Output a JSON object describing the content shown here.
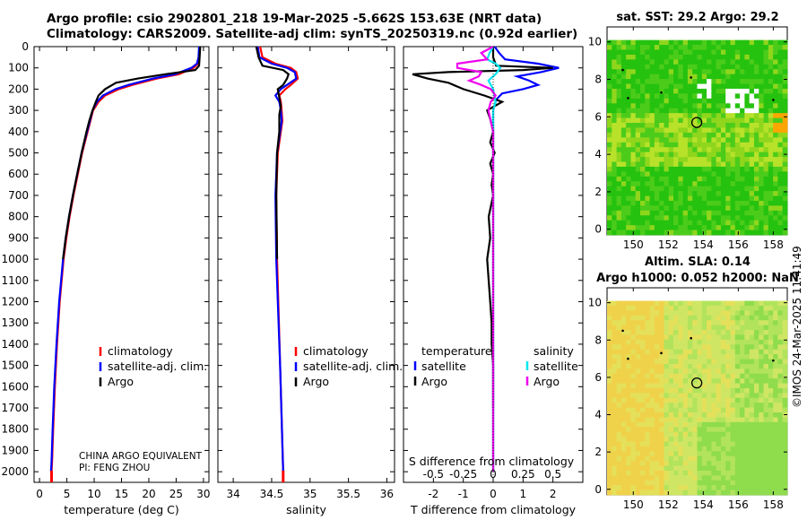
{
  "header": {
    "line1": "Argo profile: csio 2902801_218 19-Mar-2025 -5.662S 153.63E (NRT data)",
    "line2": "Climatology: CARS2009. Satellite-adj clim: synTS_20250319.nc (0.92d earlier)"
  },
  "timestamp": "©IMOS 24-Mar-2025 11:41:49",
  "colors": {
    "climatology": "#ff0000",
    "satellite_adj": "#0000ff",
    "argo": "#000000",
    "sat_salinity": "#00e5ee",
    "argo_salinity": "#ee00ee"
  },
  "chart_data": [
    {
      "id": "temperature",
      "type": "line",
      "xlabel": "temperature (deg C)",
      "ylabel": "",
      "xlim": [
        -1,
        31
      ],
      "ylim": [
        2050,
        0
      ],
      "xticks": [
        "0",
        "5",
        "10",
        "15",
        "20",
        "25",
        "30"
      ],
      "yticks": [
        "0",
        "100",
        "200",
        "300",
        "400",
        "500",
        "600",
        "700",
        "800",
        "900",
        "1000",
        "1100",
        "1200",
        "1300",
        "1400",
        "1500",
        "1600",
        "1700",
        "1800",
        "1900",
        "2000"
      ],
      "legend": [
        "climatology",
        "satellite-adj. clim.",
        "Argo"
      ],
      "legend_position": "lower-right",
      "annotation": [
        "CHINA ARGO EQUIVALENT",
        "PI: FENG ZHOU"
      ],
      "series": [
        {
          "name": "climatology",
          "color": "#ff0000",
          "depth": [
            0,
            50,
            80,
            100,
            130,
            150,
            180,
            200,
            230,
            260,
            300,
            350,
            400,
            500,
            600,
            700,
            800,
            900,
            1000,
            1200,
            1400,
            1600,
            1800,
            1950,
            2000
          ],
          "values": [
            29.3,
            29.2,
            29.0,
            28.2,
            25.5,
            21.5,
            17.0,
            14.5,
            12.0,
            10.8,
            9.8,
            9.3,
            8.8,
            7.8,
            7.0,
            6.2,
            5.5,
            4.9,
            4.4,
            3.7,
            3.2,
            2.8,
            2.5,
            2.3,
            2.2
          ]
        },
        {
          "name": "satellite-adj. clim.",
          "color": "#0000ff",
          "depth": [
            0,
            50,
            80,
            100,
            130,
            150,
            180,
            200,
            230,
            260,
            300,
            350,
            400,
            500,
            600,
            700,
            800,
            900,
            1000,
            1200,
            1400,
            1600,
            1800,
            1950,
            2000
          ],
          "values": [
            29.2,
            29.1,
            28.8,
            27.8,
            24.8,
            20.8,
            16.3,
            13.9,
            11.6,
            10.5,
            9.7,
            9.2,
            8.7,
            7.7,
            6.9,
            6.1,
            5.4,
            4.8,
            4.3,
            3.6,
            3.1,
            2.7,
            2.4,
            2.2,
            2.1
          ]
        },
        {
          "name": "Argo",
          "color": "#000000",
          "depth": [
            0,
            50,
            90,
            110,
            130,
            150,
            170,
            200,
            230,
            260,
            300,
            350,
            400,
            500,
            600,
            700,
            800,
            900,
            1000
          ],
          "values": [
            29.4,
            29.3,
            29.2,
            28.5,
            23.0,
            18.0,
            14.0,
            12.0,
            10.8,
            10.3,
            9.7,
            9.1,
            8.6,
            7.7,
            6.9,
            6.1,
            5.4,
            4.8,
            4.3
          ]
        }
      ]
    },
    {
      "id": "salinity",
      "type": "line",
      "xlabel": "salinity",
      "xlim": [
        33.8,
        36.1
      ],
      "ylim": [
        2050,
        0
      ],
      "xticks": [
        "34",
        "34.5",
        "35",
        "35.5",
        "36"
      ],
      "legend": [
        "climatology",
        "satellite-adj. clim.",
        "Argo"
      ],
      "legend_position": "lower-right",
      "series": [
        {
          "name": "climatology",
          "color": "#ff0000",
          "depth": [
            0,
            50,
            80,
            100,
            120,
            150,
            180,
            200,
            230,
            260,
            300,
            350,
            400,
            500,
            700,
            1000,
            1500,
            2000
          ],
          "values": [
            34.35,
            34.38,
            34.55,
            34.75,
            34.82,
            34.84,
            34.75,
            34.68,
            34.6,
            34.62,
            34.63,
            34.64,
            34.62,
            34.58,
            34.56,
            34.57,
            34.61,
            34.65
          ]
        },
        {
          "name": "satellite-adj. clim.",
          "color": "#0000ff",
          "depth": [
            0,
            50,
            80,
            100,
            120,
            150,
            180,
            200,
            230,
            260,
            300,
            350,
            400,
            500,
            700,
            1000,
            1500,
            2000
          ],
          "values": [
            34.32,
            34.34,
            34.5,
            34.7,
            34.8,
            34.82,
            34.7,
            34.62,
            34.55,
            34.6,
            34.62,
            34.63,
            34.61,
            34.57,
            34.55,
            34.56,
            34.61,
            34.65
          ]
        },
        {
          "name": "Argo",
          "color": "#000000",
          "depth": [
            0,
            50,
            90,
            110,
            130,
            150,
            180,
            200,
            240,
            280,
            320,
            400,
            500,
            700,
            1000
          ],
          "values": [
            34.3,
            34.33,
            34.38,
            34.65,
            34.72,
            34.7,
            34.65,
            34.58,
            34.6,
            34.62,
            34.6,
            34.6,
            34.57,
            34.56,
            34.57
          ]
        }
      ]
    },
    {
      "id": "difference",
      "type": "line",
      "xlabel": "T difference from climatology",
      "xlabel_top": "S difference from climatology",
      "xlim": [
        -3,
        3
      ],
      "ylim": [
        2050,
        0
      ],
      "xticks": [
        "-2",
        "-1",
        "0",
        "1",
        "2"
      ],
      "xticks_top": [
        "-0.5",
        "-0.25",
        "0",
        "0.25",
        "0.5"
      ],
      "legend_temperature": {
        "title": "temperature",
        "items": [
          "satellite",
          "Argo"
        ]
      },
      "legend_salinity": {
        "title": "salinity",
        "items": [
          "satellite",
          "Argo"
        ]
      },
      "series": [
        {
          "name": "T satellite",
          "color": "#0000ff",
          "depth": [
            0,
            30,
            60,
            80,
            100,
            120,
            140,
            160,
            180,
            200,
            220,
            250,
            300,
            400,
            600,
            1000,
            1500,
            2000
          ],
          "values": [
            0.05,
            0.2,
            0.4,
            1.5,
            2.2,
            1.6,
            0.8,
            1.2,
            1.5,
            1.0,
            0.3,
            0.1,
            0.0,
            0.0,
            0.0,
            0.0,
            0.0,
            0.0
          ]
        },
        {
          "name": "T Argo",
          "color": "#000000",
          "depth": [
            0,
            50,
            90,
            100,
            110,
            120,
            130,
            150,
            170,
            200,
            230,
            260,
            300,
            340,
            400,
            450,
            500,
            550,
            600,
            650,
            700,
            800,
            900,
            1000,
            1100,
            1200,
            1300,
            1400,
            1500,
            1600,
            1700
          ],
          "values": [
            0.0,
            0.0,
            0.1,
            2.0,
            1.0,
            -1.5,
            -2.7,
            -2.2,
            -1.5,
            -1.0,
            -0.3,
            0.3,
            -0.2,
            -0.1,
            0.0,
            -0.1,
            0.05,
            -0.1,
            0.0,
            -0.05,
            0.0,
            -0.15,
            -0.1,
            -0.2,
            -0.15,
            -0.1,
            -0.05,
            -0.05,
            0.0,
            0.0,
            0.0
          ]
        },
        {
          "name": "S satellite",
          "color": "#00e5ee",
          "depth": [
            0,
            30,
            60,
            80,
            100,
            130,
            160,
            200,
            260,
            300,
            400,
            600,
            1000,
            1500,
            2000
          ],
          "values": [
            0.0,
            -0.03,
            -0.05,
            0.02,
            0.06,
            0.02,
            -0.04,
            0.0,
            0.02,
            0.0,
            0.0,
            0.0,
            0.0,
            0.0,
            0.0
          ]
        },
        {
          "name": "S Argo",
          "color": "#ee00ee",
          "depth": [
            0,
            30,
            60,
            80,
            100,
            120,
            140,
            160,
            180,
            200,
            230,
            260,
            300,
            350,
            400,
            500,
            600,
            800,
            1000,
            1300,
            1500,
            1700,
            2000
          ],
          "values": [
            0.0,
            -0.1,
            -0.05,
            -0.3,
            -0.3,
            -0.1,
            -0.12,
            -0.2,
            -0.1,
            -0.02,
            0.02,
            -0.02,
            -0.04,
            -0.02,
            0.0,
            0.0,
            0.0,
            0.0,
            0.0,
            0.0,
            0.0,
            0.0,
            0.0
          ]
        }
      ]
    },
    {
      "id": "sst_map",
      "type": "heatmap",
      "title": "sat. SST: 29.2 Argo: 29.2",
      "xlim": [
        148.5,
        158.8
      ],
      "ylim": [
        -0.3,
        10.8
      ],
      "xticks": [
        "150",
        "152",
        "154",
        "156",
        "158"
      ],
      "yticks": [
        "0",
        "2",
        "4",
        "6",
        "8",
        "10"
      ],
      "float_position": [
        153.63,
        5.7
      ]
    },
    {
      "id": "sla_map",
      "type": "heatmap",
      "title": "Altim. SLA: 0.14",
      "subtitle": "Argo h1000: 0.052 h2000: NaN",
      "xlim": [
        148.5,
        158.8
      ],
      "ylim": [
        -0.3,
        10.8
      ],
      "xticks": [
        "150",
        "152",
        "154",
        "156",
        "158"
      ],
      "yticks": [
        "0",
        "2",
        "4",
        "6",
        "8",
        "10"
      ],
      "float_position": [
        153.63,
        5.7
      ]
    }
  ]
}
